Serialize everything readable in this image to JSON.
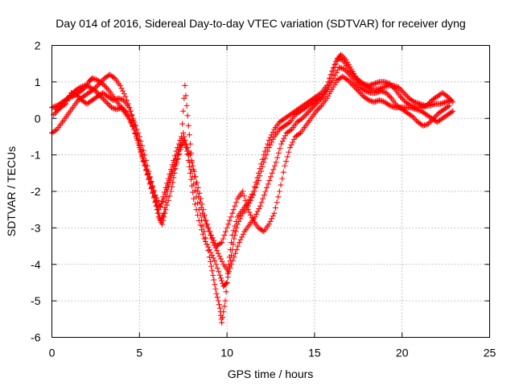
{
  "chart_data": {
    "type": "scatter",
    "title": "Day 014 of 2016, Sidereal Day-to-day VTEC variation (SDTVAR) for receiver dyng",
    "xlabel": "GPS time / hours",
    "ylabel": "SDTVAR / TECUs",
    "xlim": [
      0,
      25
    ],
    "ylim": [
      -6,
      2
    ],
    "xticks": [
      "0",
      "5",
      "10",
      "15",
      "20",
      "25"
    ],
    "yticks": [
      "-6",
      "-5",
      "-4",
      "-3",
      "-2",
      "-1",
      "0",
      "1",
      "2"
    ],
    "grid": true,
    "marker": "+",
    "color": "#ff0000",
    "series": [
      {
        "name": "",
        "points": [
          [
            0,
            0.3
          ],
          [
            0.3,
            0.35
          ],
          [
            0.6,
            0.45
          ],
          [
            0.9,
            0.55
          ],
          [
            1.2,
            0.6
          ],
          [
            1.5,
            0.7
          ],
          [
            1.8,
            0.8
          ],
          [
            2.1,
            1.0
          ],
          [
            2.3,
            1.1
          ],
          [
            2.6,
            1.05
          ],
          [
            2.9,
            0.95
          ],
          [
            3.2,
            0.8
          ],
          [
            3.5,
            0.6
          ],
          [
            3.8,
            0.4
          ],
          [
            4.1,
            0.2
          ],
          [
            4.4,
            0.0
          ],
          [
            4.7,
            -0.3
          ],
          [
            5.0,
            -0.8
          ],
          [
            5.3,
            -1.3
          ],
          [
            5.6,
            -1.8
          ],
          [
            5.9,
            -2.3
          ],
          [
            6.1,
            -2.7
          ],
          [
            6.3,
            -2.9
          ],
          [
            6.5,
            -2.5
          ],
          [
            6.8,
            -2.0
          ],
          [
            7.0,
            -1.5
          ],
          [
            7.2,
            -1.0
          ],
          [
            7.5,
            -0.4
          ],
          [
            7.7,
            -0.8
          ],
          [
            7.9,
            -1.5
          ],
          [
            8.1,
            -2.2
          ],
          [
            8.4,
            -2.8
          ],
          [
            8.7,
            -3.3
          ],
          [
            9.0,
            -3.6
          ],
          [
            9.3,
            -3.9
          ],
          [
            9.6,
            -4.3
          ],
          [
            9.8,
            -4.6
          ],
          [
            10.0,
            -4.5
          ],
          [
            10.2,
            -3.9
          ],
          [
            10.4,
            -3.3
          ],
          [
            10.6,
            -2.9
          ],
          [
            10.9,
            -2.6
          ],
          [
            11.2,
            -2.4
          ],
          [
            11.5,
            -2.1
          ],
          [
            11.8,
            -1.7
          ],
          [
            12.1,
            -1.2
          ],
          [
            12.4,
            -0.8
          ],
          [
            12.7,
            -0.5
          ],
          [
            13.0,
            -0.3
          ],
          [
            13.3,
            -0.2
          ],
          [
            13.6,
            -0.1
          ],
          [
            13.9,
            0.1
          ],
          [
            14.2,
            0.2
          ],
          [
            14.5,
            0.3
          ],
          [
            14.8,
            0.4
          ],
          [
            15.1,
            0.5
          ],
          [
            15.4,
            0.6
          ],
          [
            15.7,
            0.8
          ],
          [
            16.0,
            1.2
          ],
          [
            16.3,
            1.6
          ],
          [
            16.5,
            1.75
          ],
          [
            16.8,
            1.6
          ],
          [
            17.1,
            1.35
          ],
          [
            17.4,
            1.1
          ],
          [
            17.7,
            0.95
          ],
          [
            18.0,
            0.85
          ],
          [
            18.3,
            0.8
          ],
          [
            18.6,
            0.8
          ],
          [
            18.9,
            0.85
          ],
          [
            19.2,
            0.9
          ],
          [
            19.5,
            0.9
          ],
          [
            19.8,
            0.85
          ],
          [
            20.1,
            0.7
          ],
          [
            20.4,
            0.55
          ],
          [
            20.7,
            0.45
          ],
          [
            21.0,
            0.4
          ],
          [
            21.3,
            0.35
          ],
          [
            21.6,
            0.35
          ],
          [
            21.9,
            0.4
          ],
          [
            22.2,
            0.4
          ],
          [
            22.5,
            0.45
          ],
          [
            22.8,
            0.5
          ]
        ]
      },
      {
        "name": "",
        "points": [
          [
            0,
            -0.4
          ],
          [
            0.3,
            -0.3
          ],
          [
            0.6,
            -0.1
          ],
          [
            0.9,
            0.1
          ],
          [
            1.2,
            0.3
          ],
          [
            1.5,
            0.5
          ],
          [
            1.8,
            0.6
          ],
          [
            2.1,
            0.7
          ],
          [
            2.4,
            0.8
          ],
          [
            2.7,
            0.95
          ],
          [
            3.0,
            1.1
          ],
          [
            3.3,
            1.2
          ],
          [
            3.6,
            1.1
          ],
          [
            3.9,
            0.9
          ],
          [
            4.2,
            0.6
          ],
          [
            4.5,
            0.2
          ],
          [
            4.8,
            -0.3
          ],
          [
            5.1,
            -0.9
          ],
          [
            5.4,
            -1.4
          ],
          [
            5.7,
            -1.9
          ],
          [
            6.0,
            -2.4
          ],
          [
            6.2,
            -2.8
          ],
          [
            6.4,
            -2.6
          ],
          [
            6.6,
            -2.0
          ],
          [
            6.9,
            -1.5
          ],
          [
            7.2,
            -1.1
          ],
          [
            7.5,
            -0.6
          ],
          [
            7.8,
            -1.0
          ],
          [
            8.1,
            -1.8
          ],
          [
            8.4,
            -2.5
          ],
          [
            8.7,
            -3.1
          ],
          [
            9.0,
            -3.8
          ],
          [
            9.2,
            -4.3
          ],
          [
            9.4,
            -4.8
          ],
          [
            9.6,
            -5.2
          ],
          [
            9.7,
            -5.6
          ],
          [
            9.9,
            -5.0
          ],
          [
            10.1,
            -4.0
          ],
          [
            10.3,
            -3.2
          ],
          [
            10.6,
            -2.7
          ],
          [
            10.9,
            -2.5
          ],
          [
            11.2,
            -2.3
          ],
          [
            11.5,
            -2.0
          ],
          [
            11.8,
            -1.5
          ],
          [
            12.1,
            -1.0
          ],
          [
            12.4,
            -0.6
          ],
          [
            12.7,
            -0.3
          ],
          [
            13.0,
            -0.1
          ],
          [
            13.3,
            0.0
          ],
          [
            13.6,
            0.1
          ],
          [
            13.9,
            0.2
          ],
          [
            14.2,
            0.3
          ],
          [
            14.5,
            0.4
          ],
          [
            14.8,
            0.5
          ],
          [
            15.1,
            0.6
          ],
          [
            15.4,
            0.7
          ],
          [
            15.7,
            0.9
          ],
          [
            16.0,
            1.3
          ],
          [
            16.3,
            1.65
          ],
          [
            16.6,
            1.6
          ],
          [
            16.9,
            1.4
          ],
          [
            17.2,
            1.2
          ],
          [
            17.5,
            1.05
          ],
          [
            17.8,
            0.95
          ],
          [
            18.1,
            0.9
          ],
          [
            18.4,
            0.95
          ],
          [
            18.7,
            1.0
          ],
          [
            19.0,
            1.0
          ],
          [
            19.3,
            0.95
          ],
          [
            19.6,
            0.8
          ],
          [
            19.9,
            0.6
          ],
          [
            20.2,
            0.45
          ],
          [
            20.5,
            0.35
          ],
          [
            20.8,
            0.3
          ],
          [
            21.1,
            0.3
          ],
          [
            21.4,
            0.35
          ],
          [
            21.7,
            0.5
          ],
          [
            22.0,
            0.6
          ],
          [
            22.3,
            0.7
          ],
          [
            22.6,
            0.6
          ],
          [
            22.9,
            0.45
          ]
        ]
      },
      {
        "name": "",
        "points": [
          [
            0.2,
            0.25
          ],
          [
            0.5,
            0.3
          ],
          [
            0.8,
            0.4
          ],
          [
            1.1,
            0.7
          ],
          [
            1.4,
            0.65
          ],
          [
            1.7,
            0.5
          ],
          [
            2.0,
            0.4
          ],
          [
            2.3,
            0.5
          ],
          [
            2.6,
            0.6
          ],
          [
            2.9,
            0.7
          ],
          [
            3.2,
            0.6
          ],
          [
            3.5,
            0.5
          ],
          [
            3.8,
            0.55
          ],
          [
            4.1,
            0.5
          ],
          [
            4.4,
            0.3
          ],
          [
            4.7,
            -0.1
          ],
          [
            5.0,
            -0.5
          ],
          [
            5.3,
            -1.0
          ],
          [
            5.6,
            -1.6
          ],
          [
            5.9,
            -2.1
          ],
          [
            6.2,
            -2.4
          ],
          [
            6.5,
            -1.9
          ],
          [
            6.8,
            -1.4
          ],
          [
            7.1,
            -0.9
          ],
          [
            7.4,
            -0.5
          ],
          [
            7.6,
            0.9
          ],
          [
            7.8,
            -0.2
          ],
          [
            8.0,
            -1.2
          ],
          [
            8.3,
            -2.0
          ],
          [
            8.6,
            -2.6
          ],
          [
            8.9,
            -3.0
          ],
          [
            9.2,
            -3.4
          ],
          [
            9.5,
            -3.7
          ],
          [
            9.8,
            -4.0
          ],
          [
            10.1,
            -4.2
          ],
          [
            10.4,
            -3.8
          ],
          [
            10.7,
            -3.4
          ],
          [
            11.0,
            -3.1
          ],
          [
            11.3,
            -2.9
          ],
          [
            11.6,
            -2.7
          ],
          [
            11.9,
            -2.4
          ],
          [
            12.2,
            -2.0
          ],
          [
            12.5,
            -1.6
          ],
          [
            12.8,
            -1.2
          ],
          [
            13.1,
            -0.7
          ],
          [
            13.4,
            -0.4
          ],
          [
            13.7,
            -0.3
          ],
          [
            14.0,
            -0.1
          ],
          [
            14.3,
            0.0
          ],
          [
            14.6,
            0.15
          ],
          [
            14.9,
            0.3
          ],
          [
            15.2,
            0.45
          ],
          [
            15.5,
            0.6
          ],
          [
            15.8,
            0.85
          ],
          [
            16.1,
            1.1
          ],
          [
            16.4,
            1.4
          ],
          [
            16.7,
            1.35
          ],
          [
            17.0,
            1.2
          ],
          [
            17.3,
            1.0
          ],
          [
            17.6,
            0.85
          ],
          [
            17.9,
            0.75
          ],
          [
            18.2,
            0.7
          ],
          [
            18.5,
            0.7
          ],
          [
            18.8,
            0.75
          ],
          [
            19.1,
            0.7
          ],
          [
            19.4,
            0.55
          ],
          [
            19.7,
            0.35
          ],
          [
            20.0,
            0.25
          ],
          [
            20.3,
            0.15
          ],
          [
            20.6,
            0.05
          ],
          [
            20.9,
            -0.1
          ],
          [
            21.2,
            -0.2
          ],
          [
            21.5,
            -0.15
          ],
          [
            21.8,
            0.0
          ],
          [
            22.1,
            0.15
          ],
          [
            22.4,
            0.25
          ],
          [
            22.7,
            0.35
          ]
        ]
      },
      {
        "name": "",
        "points": [
          [
            0.1,
            0.1
          ],
          [
            0.4,
            0.25
          ],
          [
            0.7,
            0.45
          ],
          [
            1.0,
            0.6
          ],
          [
            1.3,
            0.75
          ],
          [
            1.6,
            0.85
          ],
          [
            1.9,
            0.9
          ],
          [
            2.2,
            0.85
          ],
          [
            2.5,
            0.75
          ],
          [
            2.8,
            0.6
          ],
          [
            3.1,
            0.45
          ],
          [
            3.4,
            0.3
          ],
          [
            3.7,
            0.25
          ],
          [
            4.0,
            0.3
          ],
          [
            4.3,
            0.15
          ],
          [
            4.6,
            -0.2
          ],
          [
            4.9,
            -0.6
          ],
          [
            5.2,
            -1.1
          ],
          [
            5.5,
            -1.5
          ],
          [
            5.8,
            -2.0
          ],
          [
            6.1,
            -2.5
          ],
          [
            6.4,
            -2.2
          ],
          [
            6.7,
            -1.7
          ],
          [
            7.0,
            -1.2
          ],
          [
            7.3,
            -0.8
          ],
          [
            7.6,
            -0.6
          ],
          [
            7.9,
            -1.0
          ],
          [
            8.2,
            -1.6
          ],
          [
            8.5,
            -2.2
          ],
          [
            8.8,
            -2.8
          ],
          [
            9.1,
            -3.2
          ],
          [
            9.4,
            -3.5
          ],
          [
            9.7,
            -3.4
          ],
          [
            10.0,
            -3.0
          ],
          [
            10.3,
            -2.6
          ],
          [
            10.6,
            -2.2
          ],
          [
            10.9,
            -2.0
          ],
          [
            11.2,
            -2.5
          ],
          [
            11.5,
            -2.8
          ],
          [
            11.8,
            -3.0
          ],
          [
            12.1,
            -3.1
          ],
          [
            12.4,
            -2.9
          ],
          [
            12.7,
            -2.6
          ],
          [
            13.0,
            -2.0
          ],
          [
            13.3,
            -1.3
          ],
          [
            13.6,
            -0.8
          ],
          [
            13.9,
            -0.5
          ],
          [
            14.2,
            -0.4
          ],
          [
            14.5,
            -0.2
          ],
          [
            14.8,
            0.0
          ],
          [
            15.1,
            0.2
          ],
          [
            15.4,
            0.35
          ],
          [
            15.7,
            0.55
          ],
          [
            16.0,
            0.8
          ],
          [
            16.3,
            1.05
          ],
          [
            16.6,
            1.15
          ],
          [
            16.9,
            1.05
          ],
          [
            17.2,
            0.9
          ],
          [
            17.5,
            0.75
          ],
          [
            17.8,
            0.6
          ],
          [
            18.1,
            0.5
          ],
          [
            18.4,
            0.45
          ],
          [
            18.7,
            0.5
          ],
          [
            19.0,
            0.45
          ],
          [
            19.3,
            0.35
          ],
          [
            19.6,
            0.3
          ],
          [
            19.9,
            0.3
          ],
          [
            20.2,
            0.3
          ],
          [
            20.5,
            0.3
          ],
          [
            20.8,
            0.25
          ],
          [
            21.1,
            0.2
          ],
          [
            21.4,
            0.1
          ],
          [
            21.7,
            0.0
          ],
          [
            22.0,
            -0.1
          ],
          [
            22.3,
            0.0
          ],
          [
            22.6,
            0.1
          ],
          [
            22.9,
            0.2
          ]
        ]
      }
    ]
  }
}
